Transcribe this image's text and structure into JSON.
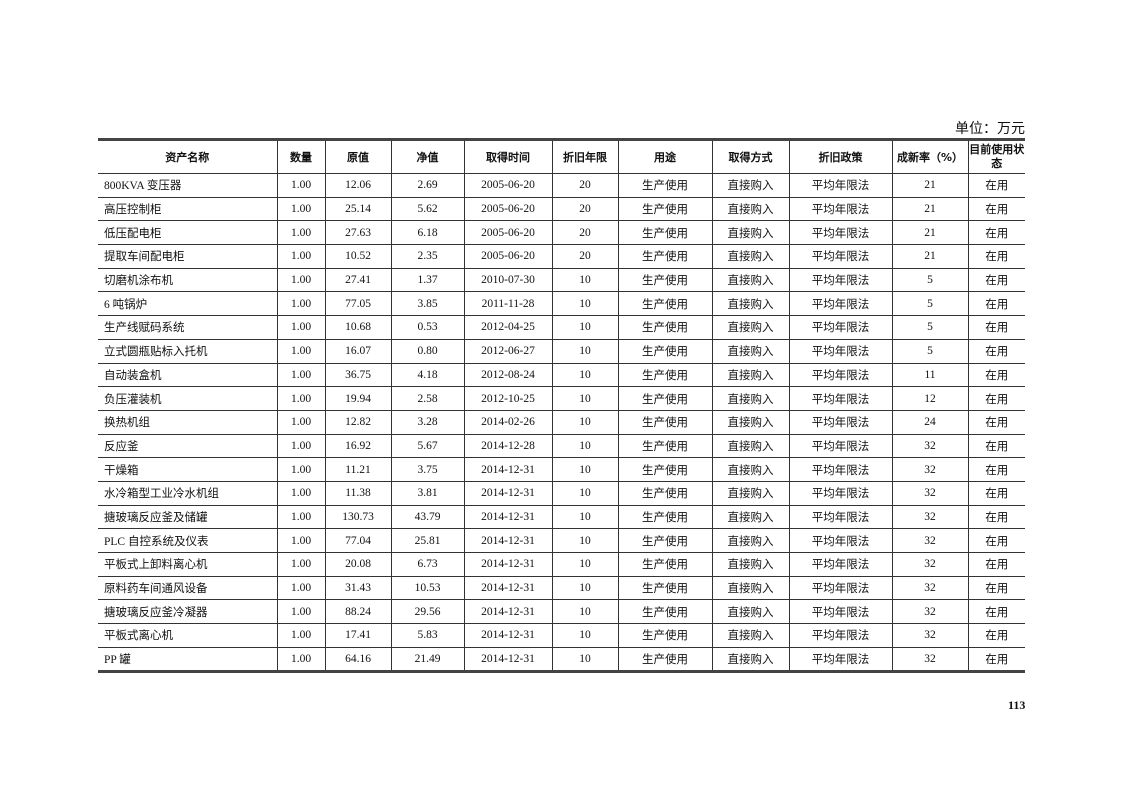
{
  "unit_label": "单位：万元",
  "columns": [
    "资产名称",
    "数量",
    "原值",
    "净值",
    "取得时间",
    "折旧年限",
    "用途",
    "取得方式",
    "折旧政策",
    "成新率（%）",
    "目前使用状态"
  ],
  "rows": [
    [
      "800KVA 变压器",
      "1.00",
      "12.06",
      "2.69",
      "2005-06-20",
      "20",
      "生产使用",
      "直接购入",
      "平均年限法",
      "21",
      "在用"
    ],
    [
      "高压控制柜",
      "1.00",
      "25.14",
      "5.62",
      "2005-06-20",
      "20",
      "生产使用",
      "直接购入",
      "平均年限法",
      "21",
      "在用"
    ],
    [
      "低压配电柜",
      "1.00",
      "27.63",
      "6.18",
      "2005-06-20",
      "20",
      "生产使用",
      "直接购入",
      "平均年限法",
      "21",
      "在用"
    ],
    [
      "提取车间配电柜",
      "1.00",
      "10.52",
      "2.35",
      "2005-06-20",
      "20",
      "生产使用",
      "直接购入",
      "平均年限法",
      "21",
      "在用"
    ],
    [
      "切磨机涂布机",
      "1.00",
      "27.41",
      "1.37",
      "2010-07-30",
      "10",
      "生产使用",
      "直接购入",
      "平均年限法",
      "5",
      "在用"
    ],
    [
      "6 吨锅炉",
      "1.00",
      "77.05",
      "3.85",
      "2011-11-28",
      "10",
      "生产使用",
      "直接购入",
      "平均年限法",
      "5",
      "在用"
    ],
    [
      "生产线赋码系统",
      "1.00",
      "10.68",
      "0.53",
      "2012-04-25",
      "10",
      "生产使用",
      "直接购入",
      "平均年限法",
      "5",
      "在用"
    ],
    [
      "立式圆瓶贴标入托机",
      "1.00",
      "16.07",
      "0.80",
      "2012-06-27",
      "10",
      "生产使用",
      "直接购入",
      "平均年限法",
      "5",
      "在用"
    ],
    [
      "自动装盒机",
      "1.00",
      "36.75",
      "4.18",
      "2012-08-24",
      "10",
      "生产使用",
      "直接购入",
      "平均年限法",
      "11",
      "在用"
    ],
    [
      "负压灌装机",
      "1.00",
      "19.94",
      "2.58",
      "2012-10-25",
      "10",
      "生产使用",
      "直接购入",
      "平均年限法",
      "12",
      "在用"
    ],
    [
      "换热机组",
      "1.00",
      "12.82",
      "3.28",
      "2014-02-26",
      "10",
      "生产使用",
      "直接购入",
      "平均年限法",
      "24",
      "在用"
    ],
    [
      "反应釜",
      "1.00",
      "16.92",
      "5.67",
      "2014-12-28",
      "10",
      "生产使用",
      "直接购入",
      "平均年限法",
      "32",
      "在用"
    ],
    [
      "干燥箱",
      "1.00",
      "11.21",
      "3.75",
      "2014-12-31",
      "10",
      "生产使用",
      "直接购入",
      "平均年限法",
      "32",
      "在用"
    ],
    [
      "水冷箱型工业冷水机组",
      "1.00",
      "11.38",
      "3.81",
      "2014-12-31",
      "10",
      "生产使用",
      "直接购入",
      "平均年限法",
      "32",
      "在用"
    ],
    [
      "搪玻璃反应釜及储罐",
      "1.00",
      "130.73",
      "43.79",
      "2014-12-31",
      "10",
      "生产使用",
      "直接购入",
      "平均年限法",
      "32",
      "在用"
    ],
    [
      "PLC 自控系统及仪表",
      "1.00",
      "77.04",
      "25.81",
      "2014-12-31",
      "10",
      "生产使用",
      "直接购入",
      "平均年限法",
      "32",
      "在用"
    ],
    [
      "平板式上卸料离心机",
      "1.00",
      "20.08",
      "6.73",
      "2014-12-31",
      "10",
      "生产使用",
      "直接购入",
      "平均年限法",
      "32",
      "在用"
    ],
    [
      "原料药车间通风设备",
      "1.00",
      "31.43",
      "10.53",
      "2014-12-31",
      "10",
      "生产使用",
      "直接购入",
      "平均年限法",
      "32",
      "在用"
    ],
    [
      "搪玻璃反应釜冷凝器",
      "1.00",
      "88.24",
      "29.56",
      "2014-12-31",
      "10",
      "生产使用",
      "直接购入",
      "平均年限法",
      "32",
      "在用"
    ],
    [
      "平板式离心机",
      "1.00",
      "17.41",
      "5.83",
      "2014-12-31",
      "10",
      "生产使用",
      "直接购入",
      "平均年限法",
      "32",
      "在用"
    ],
    [
      "PP 罐",
      "1.00",
      "64.16",
      "21.49",
      "2014-12-31",
      "10",
      "生产使用",
      "直接购入",
      "平均年限法",
      "32",
      "在用"
    ]
  ],
  "page_number": "113"
}
